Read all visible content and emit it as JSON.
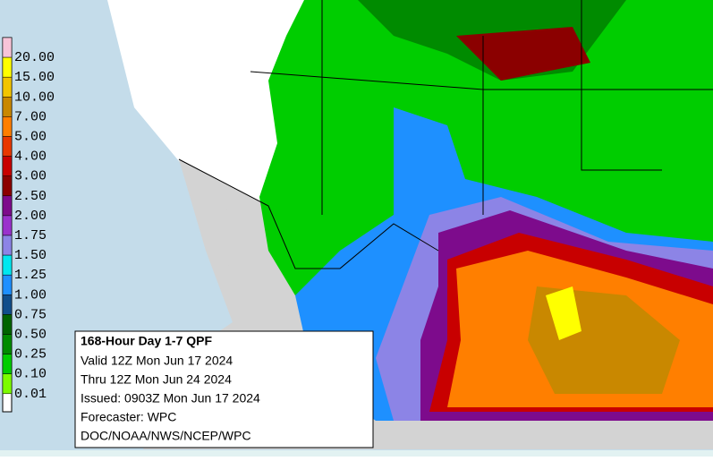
{
  "legend": {
    "items": [
      {
        "label": "20.00",
        "color": "#f7c4d8"
      },
      {
        "label": "15.00",
        "color": "#ffff00"
      },
      {
        "label": "10.00",
        "color": "#f2c500"
      },
      {
        "label": "7.00",
        "color": "#c98800"
      },
      {
        "label": "5.00",
        "color": "#ff7f00"
      },
      {
        "label": "4.00",
        "color": "#e83800"
      },
      {
        "label": "3.00",
        "color": "#c80000"
      },
      {
        "label": "2.50",
        "color": "#8b0000"
      },
      {
        "label": "2.00",
        "color": "#7d0b8c"
      },
      {
        "label": "1.75",
        "color": "#9a32cd"
      },
      {
        "label": "1.50",
        "color": "#8c84e6"
      },
      {
        "label": "1.25",
        "color": "#00e8f0"
      },
      {
        "label": "1.00",
        "color": "#1e90ff"
      },
      {
        "label": "0.75",
        "color": "#104e8b"
      },
      {
        "label": "0.50",
        "color": "#006400"
      },
      {
        "label": "0.25",
        "color": "#008b00"
      },
      {
        "label": "0.10",
        "color": "#00cd00"
      },
      {
        "label": "0.01",
        "color": "#7cfc00"
      }
    ]
  },
  "info_box": {
    "title": "168-Hour Day 1-7 QPF",
    "lines": [
      "Valid 12Z Mon Jun 17 2024",
      "Thru 12Z Mon Jun 24 2024",
      "Issued: 0903Z Mon Jun 17 2024",
      "Forecaster: WPC",
      "DOC/NOAA/NWS/NCEP/WPC"
    ]
  }
}
